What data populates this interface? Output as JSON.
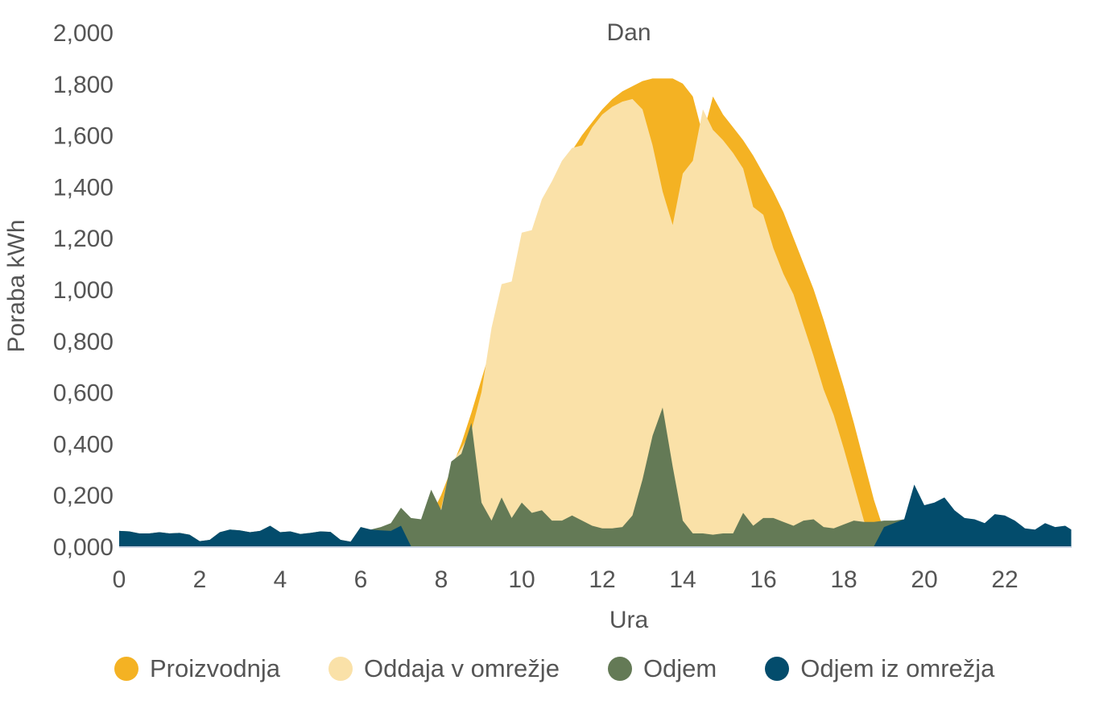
{
  "chart_data": {
    "type": "area",
    "title": "Dan",
    "xlabel": "Ura",
    "ylabel": "Poraba kWh",
    "xlim": [
      0,
      23.75
    ],
    "ylim": [
      0,
      2
    ],
    "x_ticks": [
      0,
      2,
      4,
      6,
      8,
      10,
      12,
      14,
      16,
      18,
      20,
      22
    ],
    "x_tick_labels": [
      "0",
      "2",
      "4",
      "6",
      "8",
      "10",
      "12",
      "14",
      "16",
      "18",
      "20",
      "22"
    ],
    "y_ticks": [
      0,
      0.2,
      0.4,
      0.6,
      0.8,
      1.0,
      1.2,
      1.4,
      1.6,
      1.8,
      2.0
    ],
    "y_tick_labels": [
      "0,000",
      "0,200",
      "0,400",
      "0,600",
      "0,800",
      "1,000",
      "1,200",
      "1,400",
      "1,600",
      "1,800",
      "2,000"
    ],
    "grid": false,
    "legend_position": "bottom",
    "x_step_hours": 0.25,
    "series": [
      {
        "name": "Proizvodnja",
        "color": "#F4B223",
        "values": [
          0,
          0,
          0,
          0,
          0,
          0,
          0,
          0,
          0,
          0,
          0,
          0,
          0,
          0,
          0,
          0,
          0,
          0,
          0,
          0,
          0,
          0,
          0,
          0,
          0,
          0,
          0,
          0,
          0,
          0.02,
          0.05,
          0.12,
          0.2,
          0.3,
          0.4,
          0.52,
          0.65,
          0.78,
          0.9,
          1.02,
          1.12,
          1.22,
          1.31,
          1.39,
          1.47,
          1.54,
          1.6,
          1.65,
          1.7,
          1.74,
          1.77,
          1.79,
          1.81,
          1.82,
          1.82,
          1.82,
          1.8,
          1.75,
          1.6,
          1.75,
          1.68,
          1.63,
          1.58,
          1.52,
          1.45,
          1.38,
          1.3,
          1.2,
          1.1,
          1.0,
          0.88,
          0.75,
          0.62,
          0.48,
          0.33,
          0.18,
          0.06,
          0,
          0,
          0,
          0,
          0,
          0,
          0,
          0,
          0,
          0,
          0,
          0,
          0,
          0,
          0,
          0,
          0,
          0
        ]
      },
      {
        "name": "Oddaja v omrežje",
        "color": "#FAE1A8",
        "values": [
          0,
          0,
          0,
          0,
          0,
          0,
          0,
          0,
          0,
          0,
          0,
          0,
          0,
          0,
          0,
          0,
          0,
          0,
          0,
          0,
          0,
          0,
          0,
          0,
          0,
          0,
          0,
          0,
          0,
          0,
          0,
          0,
          0.15,
          0.32,
          0.38,
          0.45,
          0.6,
          0.85,
          1.02,
          1.03,
          1.22,
          1.23,
          1.35,
          1.42,
          1.5,
          1.55,
          1.56,
          1.63,
          1.68,
          1.71,
          1.73,
          1.74,
          1.7,
          1.56,
          1.38,
          1.25,
          1.45,
          1.5,
          1.7,
          1.62,
          1.58,
          1.53,
          1.47,
          1.32,
          1.29,
          1.16,
          1.06,
          0.98,
          0.86,
          0.74,
          0.61,
          0.51,
          0.38,
          0.24,
          0.1,
          0,
          0,
          0,
          0,
          0,
          0,
          0,
          0,
          0,
          0,
          0,
          0,
          0,
          0,
          0,
          0,
          0,
          0,
          0,
          0
        ]
      },
      {
        "name": "Odjem",
        "color": "#647A56",
        "values": [
          0.06,
          0.058,
          0.05,
          0.05,
          0.055,
          0.05,
          0.052,
          0.045,
          0.02,
          0.025,
          0.055,
          0.065,
          0.062,
          0.055,
          0.06,
          0.08,
          0.055,
          0.058,
          0.048,
          0.052,
          0.058,
          0.056,
          0.025,
          0.018,
          0.075,
          0.065,
          0.075,
          0.09,
          0.15,
          0.11,
          0.105,
          0.22,
          0.14,
          0.33,
          0.36,
          0.48,
          0.17,
          0.1,
          0.19,
          0.11,
          0.17,
          0.13,
          0.14,
          0.1,
          0.1,
          0.12,
          0.1,
          0.08,
          0.07,
          0.07,
          0.075,
          0.12,
          0.26,
          0.43,
          0.54,
          0.31,
          0.1,
          0.05,
          0.05,
          0.045,
          0.05,
          0.05,
          0.13,
          0.08,
          0.11,
          0.11,
          0.095,
          0.08,
          0.1,
          0.105,
          0.075,
          0.07,
          0.085,
          0.1,
          0.095,
          0.095,
          0.1,
          0.1,
          0.105,
          0.11,
          0,
          0,
          0,
          0,
          0,
          0,
          0,
          0,
          0,
          0,
          0,
          0,
          0,
          0,
          0,
          0
        ]
      },
      {
        "name": "Odjem iz omrežja",
        "color": "#034C6C",
        "values": [
          0.06,
          0.058,
          0.05,
          0.05,
          0.055,
          0.05,
          0.052,
          0.045,
          0.02,
          0.025,
          0.055,
          0.065,
          0.062,
          0.055,
          0.06,
          0.08,
          0.055,
          0.058,
          0.048,
          0.052,
          0.058,
          0.056,
          0.025,
          0.018,
          0.075,
          0.065,
          0.062,
          0.06,
          0.08,
          0,
          0,
          0,
          0,
          0,
          0,
          0,
          0,
          0,
          0,
          0,
          0,
          0,
          0,
          0,
          0,
          0,
          0,
          0,
          0,
          0,
          0,
          0,
          0,
          0,
          0,
          0,
          0,
          0,
          0,
          0,
          0,
          0,
          0,
          0,
          0,
          0,
          0,
          0,
          0,
          0,
          0,
          0,
          0,
          0,
          0,
          0,
          0.075,
          0.09,
          0.105,
          0.24,
          0.16,
          0.17,
          0.19,
          0.14,
          0.11,
          0.105,
          0.09,
          0.125,
          0.12,
          0.1,
          0.07,
          0.065,
          0.09,
          0.075,
          0.08,
          0.065,
          0.065
        ]
      }
    ]
  },
  "legend": {
    "items": [
      {
        "label": "Proizvodnja",
        "color": "#F4B223"
      },
      {
        "label": "Oddaja v omrežje",
        "color": "#FAE1A8"
      },
      {
        "label": "Odjem",
        "color": "#647A56"
      },
      {
        "label": "Odjem iz omrežja",
        "color": "#034C6C"
      }
    ]
  }
}
